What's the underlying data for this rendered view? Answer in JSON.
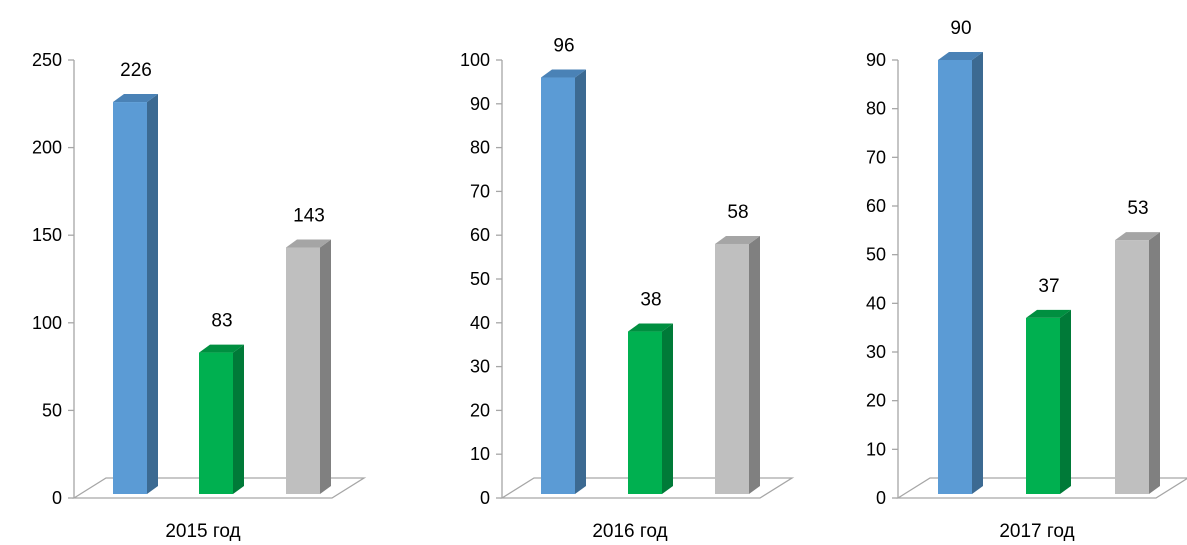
{
  "colors": {
    "series": [
      "#5b9bd5",
      "#00b050",
      "#bfbfbf"
    ],
    "series_side": [
      "#3c6a92",
      "#007a38",
      "#808080"
    ],
    "series_top": [
      "#4a82b6",
      "#008f40",
      "#a5a5a5"
    ],
    "axis": "#a6a6a6"
  },
  "chart_data": [
    {
      "type": "bar",
      "xlabel": "2015 год",
      "ylim": [
        0,
        250
      ],
      "ytick_step": 50,
      "yticks": [
        "0",
        "50",
        "100",
        "150",
        "200",
        "250"
      ],
      "values": [
        226,
        83,
        143
      ],
      "value_labels": [
        "226",
        "83",
        "143"
      ]
    },
    {
      "type": "bar",
      "xlabel": "2016 год",
      "ylim": [
        0,
        100
      ],
      "ytick_step": 10,
      "yticks": [
        "0",
        "10",
        "20",
        "30",
        "40",
        "50",
        "60",
        "70",
        "80",
        "90",
        "100"
      ],
      "values": [
        96,
        38,
        58
      ],
      "value_labels": [
        "96",
        "38",
        "58"
      ]
    },
    {
      "type": "bar",
      "xlabel": "2017 год",
      "ylim": [
        0,
        90
      ],
      "ytick_step": 10,
      "yticks": [
        "0",
        "10",
        "20",
        "30",
        "40",
        "50",
        "60",
        "70",
        "80",
        "90"
      ],
      "values": [
        90,
        37,
        53
      ],
      "value_labels": [
        "90",
        "37",
        "53"
      ]
    }
  ]
}
